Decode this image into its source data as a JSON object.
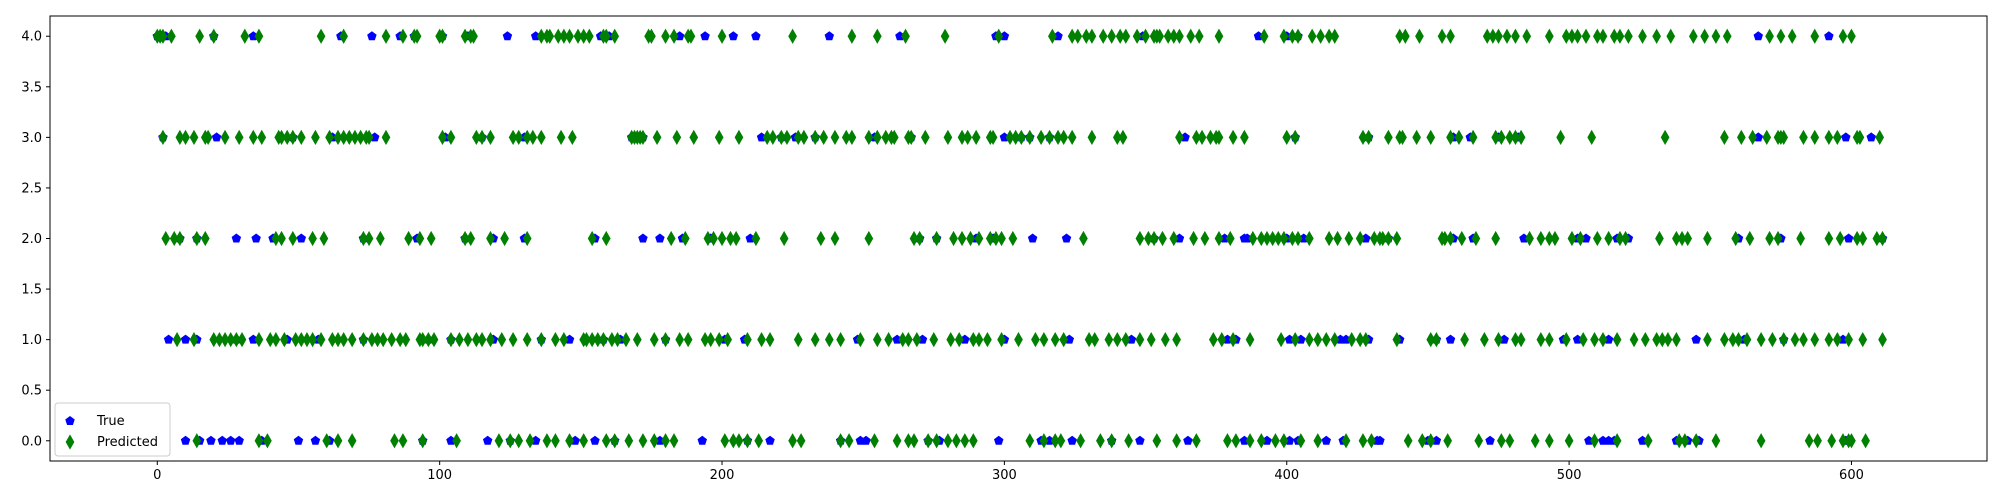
{
  "chart_data": {
    "type": "scatter",
    "xlim": [
      -38,
      648
    ],
    "ylim": [
      -0.2,
      4.2
    ],
    "xticks": [
      0,
      100,
      200,
      300,
      400,
      500,
      600
    ],
    "yticks": [
      0.0,
      0.5,
      1.0,
      1.5,
      2.0,
      2.5,
      3.0,
      3.5,
      4.0
    ],
    "xtick_labels": [
      "0",
      "100",
      "200",
      "300",
      "400",
      "500",
      "600"
    ],
    "ytick_labels": [
      "0.0",
      "0.5",
      "1.0",
      "1.5",
      "2.0",
      "2.5",
      "3.0",
      "3.5",
      "4.0"
    ],
    "grid": false,
    "legend_position": "lower-left",
    "series": [
      {
        "name": "True",
        "marker": "pentagon",
        "color": "#0000ff",
        "points": {
          "4": [
            0,
            2,
            3,
            20,
            34,
            65,
            76,
            86,
            91,
            101,
            110,
            124,
            134,
            157,
            160,
            185,
            194,
            204,
            212,
            238,
            263,
            297,
            300,
            319,
            349,
            390,
            400,
            404,
            567,
            592
          ],
          "3": [
            2,
            21,
            48,
            62,
            77,
            102,
            115,
            130,
            168,
            172,
            214,
            221,
            226,
            233,
            254,
            267,
            300,
            306,
            309,
            316,
            364,
            403,
            429,
            459,
            465,
            475,
            482,
            567,
            598,
            607
          ],
          "2": [
            8,
            14,
            28,
            35,
            41,
            51,
            73,
            92,
            109,
            119,
            130,
            155,
            172,
            178,
            186,
            196,
            210,
            270,
            276,
            290,
            296,
            310,
            322,
            353,
            362,
            378,
            385,
            386,
            400,
            406,
            428,
            436,
            459,
            466,
            484,
            503,
            506,
            517,
            521,
            560,
            575,
            599,
            611
          ],
          "1": [
            4,
            10,
            14,
            28,
            34,
            46,
            57,
            73,
            96,
            104,
            119,
            136,
            146,
            158,
            164,
            180,
            201,
            208,
            248,
            262,
            271,
            286,
            300,
            323,
            345,
            379,
            382,
            401,
            405,
            419,
            421,
            429,
            440,
            453,
            458,
            477,
            498,
            503,
            514,
            545,
            562,
            576,
            597
          ],
          "0": [
            10,
            15,
            19,
            23,
            26,
            29,
            37,
            50,
            56,
            61,
            94,
            104,
            117,
            125,
            134,
            148,
            155,
            162,
            178,
            193,
            209,
            217,
            242,
            249,
            251,
            273,
            277,
            298,
            313,
            316,
            324,
            338,
            348,
            365,
            385,
            393,
            401,
            404,
            414,
            420,
            432,
            433,
            450,
            453,
            472,
            507,
            512,
            514,
            516,
            526,
            538,
            542,
            546,
            598
          ]
        }
      },
      {
        "name": "Predicted",
        "marker": "thin_diamond",
        "color": "#008000",
        "points": {
          "4": [
            0,
            1,
            2,
            5,
            15,
            20,
            31,
            36,
            58,
            66,
            81,
            87,
            91,
            92,
            100,
            101,
            109,
            111,
            112,
            136,
            138,
            139,
            142,
            144,
            146,
            149,
            151,
            153,
            158,
            159,
            162,
            174,
            175,
            180,
            183,
            188,
            189,
            200,
            225,
            246,
            255,
            265,
            279,
            298,
            317,
            324,
            326,
            329,
            331,
            335,
            338,
            341,
            343,
            347,
            350,
            353,
            354,
            355,
            358,
            360,
            362,
            366,
            369,
            376,
            392,
            399,
            402,
            404,
            409,
            412,
            415,
            417,
            440,
            442,
            447,
            455,
            458,
            471,
            473,
            475,
            478,
            481,
            485,
            493,
            499,
            501,
            503,
            506,
            510,
            512,
            516,
            518,
            521,
            526,
            531,
            536,
            544,
            548,
            552,
            556,
            571,
            575,
            579,
            587,
            597,
            600
          ],
          "3": [
            2,
            8,
            10,
            13,
            17,
            18,
            24,
            29,
            34,
            37,
            43,
            44,
            46,
            48,
            51,
            56,
            61,
            64,
            66,
            68,
            70,
            72,
            74,
            75,
            81,
            101,
            104,
            113,
            115,
            118,
            126,
            128,
            131,
            133,
            136,
            143,
            147,
            168,
            169,
            170,
            171,
            172,
            177,
            184,
            190,
            199,
            206,
            216,
            218,
            221,
            223,
            227,
            229,
            233,
            236,
            240,
            244,
            246,
            252,
            255,
            258,
            260,
            261,
            266,
            267,
            272,
            280,
            285,
            287,
            290,
            295,
            296,
            302,
            304,
            306,
            309,
            313,
            316,
            319,
            321,
            324,
            331,
            340,
            342,
            362,
            368,
            370,
            373,
            375,
            376,
            381,
            385,
            400,
            403,
            427,
            429,
            436,
            440,
            441,
            446,
            451,
            458,
            461,
            466,
            474,
            476,
            479,
            481,
            483,
            497,
            508,
            534,
            555,
            561,
            565,
            570,
            574,
            575,
            576,
            583,
            587,
            592,
            595,
            602,
            603,
            610
          ],
          "2": [
            3,
            6,
            8,
            14,
            17,
            42,
            44,
            48,
            55,
            59,
            73,
            75,
            79,
            89,
            93,
            97,
            109,
            111,
            118,
            123,
            131,
            154,
            159,
            182,
            187,
            195,
            197,
            200,
            203,
            205,
            212,
            222,
            235,
            240,
            252,
            268,
            270,
            276,
            282,
            285,
            288,
            291,
            295,
            297,
            299,
            303,
            328,
            348,
            351,
            353,
            356,
            360,
            367,
            371,
            376,
            380,
            388,
            391,
            393,
            395,
            397,
            399,
            402,
            404,
            408,
            415,
            418,
            422,
            426,
            431,
            433,
            434,
            436,
            439,
            455,
            456,
            458,
            462,
            467,
            474,
            486,
            490,
            493,
            495,
            501,
            504,
            510,
            514,
            518,
            520,
            532,
            538,
            540,
            542,
            549,
            559,
            564,
            571,
            574,
            582,
            592,
            596,
            602,
            604,
            609,
            611
          ],
          "1": [
            7,
            13,
            20,
            22,
            24,
            26,
            28,
            30,
            36,
            40,
            42,
            45,
            49,
            51,
            53,
            55,
            58,
            62,
            64,
            66,
            69,
            73,
            76,
            78,
            80,
            83,
            86,
            88,
            93,
            94,
            96,
            98,
            104,
            107,
            110,
            113,
            115,
            118,
            122,
            126,
            131,
            136,
            141,
            144,
            151,
            152,
            154,
            156,
            158,
            161,
            163,
            166,
            170,
            176,
            180,
            185,
            188,
            194,
            196,
            199,
            202,
            209,
            214,
            217,
            227,
            233,
            238,
            242,
            249,
            255,
            259,
            264,
            266,
            269,
            275,
            281,
            284,
            289,
            291,
            294,
            299,
            305,
            311,
            314,
            318,
            321,
            330,
            332,
            337,
            340,
            343,
            348,
            352,
            357,
            361,
            374,
            377,
            381,
            387,
            398,
            403,
            408,
            411,
            414,
            417,
            423,
            426,
            428,
            439,
            451,
            453,
            463,
            470,
            475,
            481,
            483,
            490,
            493,
            499,
            505,
            509,
            512,
            517,
            523,
            527,
            531,
            533,
            535,
            538,
            549,
            555,
            558,
            560,
            563,
            568,
            572,
            576,
            580,
            583,
            587,
            592,
            595,
            599,
            604,
            611
          ],
          "0": [
            14,
            36,
            39,
            60,
            64,
            69,
            84,
            87,
            94,
            106,
            121,
            125,
            128,
            132,
            138,
            141,
            146,
            151,
            159,
            162,
            167,
            172,
            176,
            180,
            183,
            201,
            204,
            206,
            209,
            213,
            225,
            228,
            242,
            245,
            254,
            262,
            266,
            268,
            273,
            276,
            280,
            283,
            286,
            289,
            309,
            314,
            318,
            320,
            327,
            334,
            338,
            344,
            354,
            361,
            368,
            379,
            382,
            387,
            391,
            396,
            399,
            405,
            411,
            421,
            427,
            430,
            443,
            448,
            451,
            457,
            468,
            476,
            479,
            488,
            493,
            500,
            509,
            517,
            528,
            539,
            541,
            545,
            552,
            568,
            585,
            588,
            593,
            597,
            599,
            600,
            605
          ]
        }
      }
    ]
  }
}
